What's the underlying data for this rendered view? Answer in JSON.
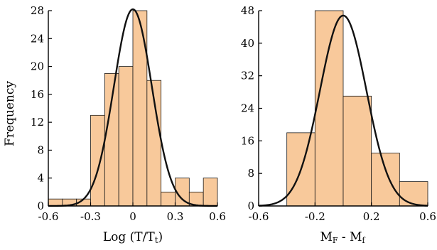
{
  "chart_data": [
    {
      "type": "bar",
      "ylabel": "Frequency",
      "xlabel_main": "Log (T/T",
      "xlabel_sub": "t",
      "xlabel_close": ")",
      "xlim": [
        -0.6,
        0.6
      ],
      "ylim": [
        0,
        28
      ],
      "xticks": [
        -0.6,
        -0.3,
        0,
        0.3,
        0.6
      ],
      "xtick_labels": [
        "-0.6",
        "-0.3",
        "0",
        "0.3",
        "0.6"
      ],
      "yticks": [
        0,
        4,
        8,
        12,
        16,
        20,
        24,
        28
      ],
      "ytick_labels": [
        "0",
        "4",
        "8",
        "12",
        "16",
        "20",
        "24",
        "28"
      ],
      "bar_width": 0.1,
      "bars": [
        {
          "x0": -0.6,
          "value": 1
        },
        {
          "x0": -0.5,
          "value": 1
        },
        {
          "x0": -0.4,
          "value": 1
        },
        {
          "x0": -0.3,
          "value": 13
        },
        {
          "x0": -0.2,
          "value": 19
        },
        {
          "x0": -0.1,
          "value": 20
        },
        {
          "x0": 0.0,
          "value": 28
        },
        {
          "x0": 0.1,
          "value": 18
        },
        {
          "x0": 0.2,
          "value": 2
        },
        {
          "x0": 0.3,
          "value": 4
        },
        {
          "x0": 0.4,
          "value": 2
        },
        {
          "x0": 0.5,
          "value": 4
        }
      ],
      "curve": {
        "mean": 0.0,
        "sd": 0.135,
        "peak": 28.2
      }
    },
    {
      "type": "bar",
      "ylabel": "",
      "xlabel_a": "M",
      "xlabel_a_sub": "F",
      "xlabel_sep": " - ",
      "xlabel_b": "M",
      "xlabel_b_sub": "f",
      "xlim": [
        -0.6,
        0.6
      ],
      "ylim": [
        0,
        48
      ],
      "xticks": [
        -0.6,
        -0.2,
        0.2,
        0.6
      ],
      "xtick_labels": [
        "-0.6",
        "-0.2",
        "0.2",
        "0.6"
      ],
      "yticks": [
        0,
        8,
        16,
        24,
        32,
        40,
        48
      ],
      "ytick_labels": [
        "0",
        "8",
        "16",
        "24",
        "32",
        "40",
        "48"
      ],
      "bar_width": 0.2,
      "bars": [
        {
          "x0": -0.4,
          "value": 18
        },
        {
          "x0": -0.2,
          "value": 48
        },
        {
          "x0": 0.0,
          "value": 27
        },
        {
          "x0": 0.2,
          "value": 13
        },
        {
          "x0": 0.4,
          "value": 6
        }
      ],
      "curve": {
        "mean": 0.0,
        "sd": 0.165,
        "peak": 46.8
      }
    }
  ],
  "colors": {
    "bar_fill": "#f8c99b",
    "bar_edge": "#1a1a1a",
    "curve": "#111111"
  }
}
